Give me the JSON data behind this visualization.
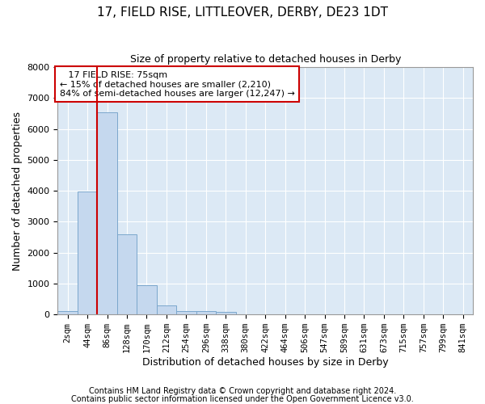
{
  "title1": "17, FIELD RISE, LITTLEOVER, DERBY, DE23 1DT",
  "title2": "Size of property relative to detached houses in Derby",
  "xlabel": "Distribution of detached houses by size in Derby",
  "ylabel": "Number of detached properties",
  "footnote1": "Contains HM Land Registry data © Crown copyright and database right 2024.",
  "footnote2": "Contains public sector information licensed under the Open Government Licence v3.0.",
  "annotation_line1": "   17 FIELD RISE: 75sqm",
  "annotation_line2": "← 15% of detached houses are smaller (2,210)",
  "annotation_line3": "84% of semi-detached houses are larger (12,247) →",
  "bar_color": "#c5d8ee",
  "bar_edge_color": "#7ba7cc",
  "vline_color": "#cc0000",
  "plot_bg_color": "#dce9f5",
  "fig_bg_color": "#ffffff",
  "grid_color": "#ffffff",
  "categories": [
    "2sqm",
    "44sqm",
    "86sqm",
    "128sqm",
    "170sqm",
    "212sqm",
    "254sqm",
    "296sqm",
    "338sqm",
    "380sqm",
    "422sqm",
    "464sqm",
    "506sqm",
    "547sqm",
    "589sqm",
    "631sqm",
    "673sqm",
    "715sqm",
    "757sqm",
    "799sqm",
    "841sqm"
  ],
  "values": [
    100,
    3980,
    6550,
    2600,
    950,
    300,
    120,
    100,
    80,
    10,
    5,
    5,
    5,
    0,
    0,
    0,
    0,
    0,
    0,
    0,
    0
  ],
  "ylim": [
    0,
    8000
  ],
  "yticks": [
    0,
    1000,
    2000,
    3000,
    4000,
    5000,
    6000,
    7000,
    8000
  ],
  "vline_x": 1.5,
  "title1_fontsize": 11,
  "title2_fontsize": 9,
  "ylabel_fontsize": 9,
  "xlabel_fontsize": 9,
  "tick_fontsize": 8,
  "xtick_fontsize": 7.5,
  "annotation_fontsize": 8,
  "footnote_fontsize": 7
}
